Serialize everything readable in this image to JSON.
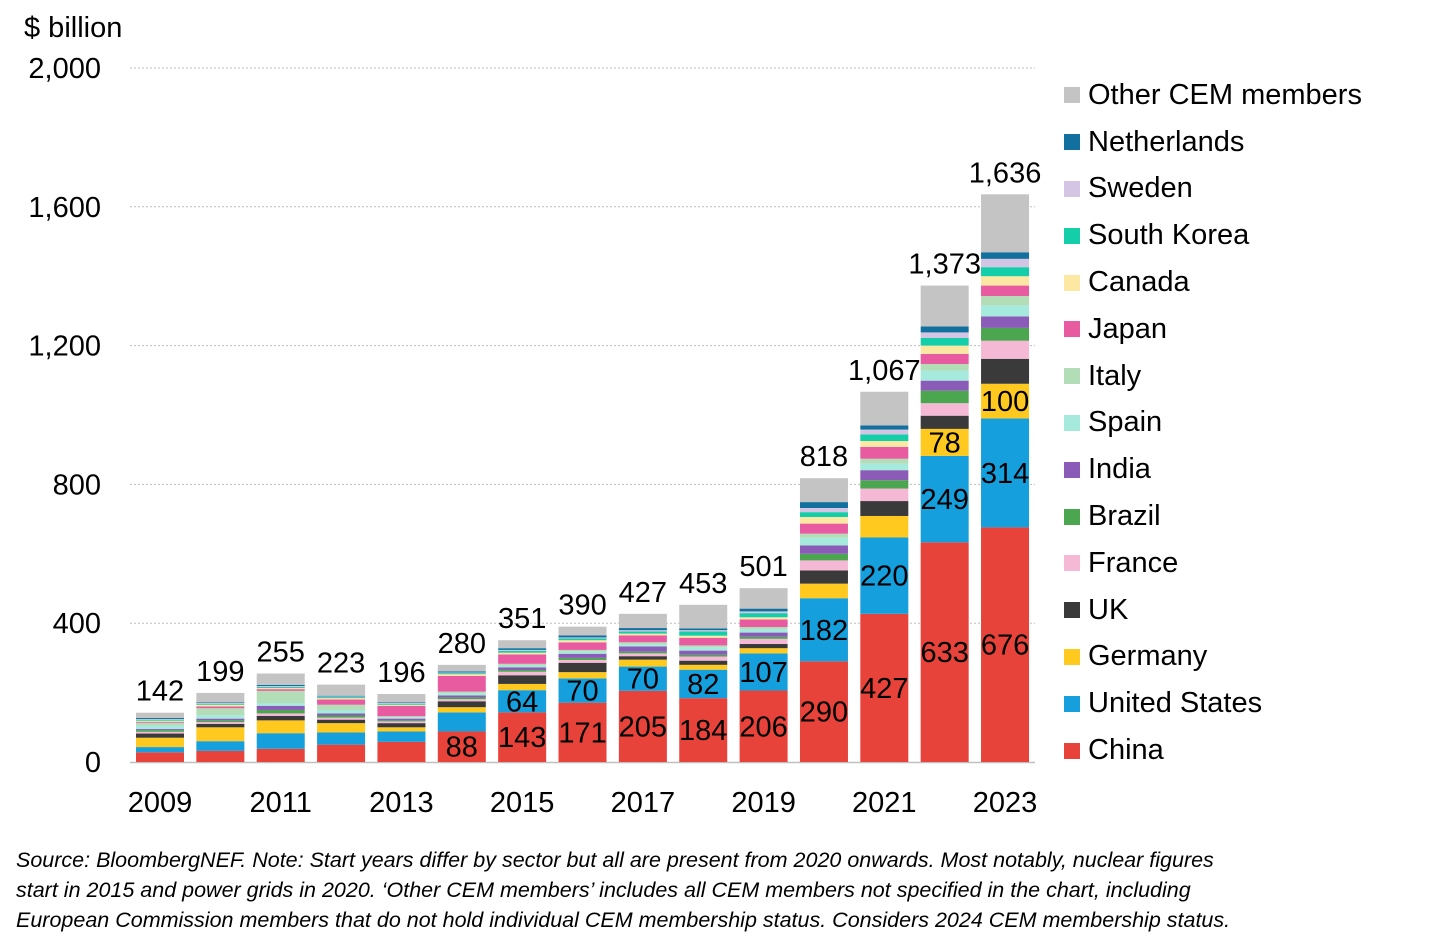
{
  "chart_data": {
    "type": "bar",
    "stacked": true,
    "unit_label": "$ billion",
    "ylim": [
      0,
      2000
    ],
    "yticks": [
      0,
      400,
      800,
      1200,
      1600,
      2000
    ],
    "ytick_labels": [
      "0",
      "400",
      "800",
      "1,200",
      "1,600",
      "2,000"
    ],
    "categories": [
      "2009",
      "2010",
      "2011",
      "2012",
      "2013",
      "2014",
      "2015",
      "2016",
      "2017",
      "2018",
      "2019",
      "2020",
      "2021",
      "2022",
      "2023"
    ],
    "xtick_labels": [
      "2009",
      "",
      "2011",
      "",
      "2013",
      "",
      "2015",
      "",
      "2017",
      "",
      "2019",
      "",
      "2021",
      "",
      "2023"
    ],
    "totals": [
      142,
      199,
      255,
      223,
      196,
      280,
      351,
      390,
      427,
      453,
      501,
      818,
      1067,
      1373,
      1636
    ],
    "total_labels": [
      "142",
      "199",
      "255",
      "223",
      "196",
      "280",
      "351",
      "390",
      "427",
      "453",
      "501",
      "818",
      "1,067",
      "1,373",
      "1,636"
    ],
    "grid": true,
    "legend_position": "right",
    "series": [
      {
        "name": "China",
        "color": "#E8433A",
        "values": [
          28,
          32,
          38,
          50,
          58,
          88,
          143,
          171,
          205,
          184,
          206,
          290,
          427,
          633,
          676
        ],
        "labels": [
          null,
          null,
          null,
          null,
          null,
          "88",
          "143",
          "171",
          "205",
          "184",
          "206",
          "290",
          "427",
          "633",
          "676"
        ]
      },
      {
        "name": "United States",
        "color": "#169FDD",
        "values": [
          15,
          28,
          45,
          35,
          30,
          55,
          64,
          70,
          70,
          82,
          107,
          182,
          220,
          249,
          314
        ],
        "labels": [
          null,
          null,
          null,
          null,
          null,
          null,
          "64",
          "70",
          "70",
          "82",
          "107",
          "182",
          "220",
          "249",
          "314"
        ]
      },
      {
        "name": "Germany",
        "color": "#FFC91F",
        "values": [
          27,
          40,
          37,
          27,
          12,
          15,
          18,
          18,
          20,
          14,
          15,
          42,
          62,
          78,
          100
        ],
        "labels": [
          null,
          null,
          null,
          null,
          null,
          null,
          null,
          null,
          null,
          null,
          null,
          null,
          null,
          "78",
          "100"
        ]
      },
      {
        "name": "UK",
        "color": "#3A3A3A",
        "values": [
          12,
          10,
          13,
          10,
          12,
          17,
          25,
          27,
          10,
          12,
          12,
          38,
          43,
          38,
          72
        ]
      },
      {
        "name": "France",
        "color": "#F5B9D6",
        "values": [
          5,
          5,
          7,
          6,
          5,
          6,
          10,
          8,
          8,
          12,
          15,
          29,
          36,
          36,
          52
        ]
      },
      {
        "name": "Brazil",
        "color": "#4CA64F",
        "values": [
          5,
          5,
          10,
          6,
          3,
          5,
          5,
          6,
          5,
          5,
          6,
          19,
          24,
          36,
          37
        ]
      },
      {
        "name": "India",
        "color": "#8A5CB8",
        "values": [
          3,
          5,
          12,
          6,
          5,
          6,
          8,
          12,
          15,
          12,
          12,
          24,
          29,
          29,
          33
        ]
      },
      {
        "name": "Spain",
        "color": "#A6E9DD",
        "values": [
          10,
          10,
          8,
          10,
          4,
          6,
          5,
          6,
          6,
          10,
          10,
          22,
          19,
          29,
          32
        ]
      },
      {
        "name": "Italy",
        "color": "#B3DDB6",
        "values": [
          8,
          20,
          35,
          15,
          3,
          5,
          5,
          5,
          6,
          5,
          6,
          12,
          14,
          19,
          27
        ]
      },
      {
        "name": "Japan",
        "color": "#E85BA1",
        "values": [
          3,
          5,
          5,
          15,
          30,
          45,
          27,
          22,
          20,
          22,
          22,
          29,
          34,
          29,
          30
        ]
      },
      {
        "name": "Canada",
        "color": "#FCE8A2",
        "values": [
          3,
          5,
          3,
          4,
          3,
          5,
          5,
          6,
          5,
          6,
          6,
          19,
          17,
          24,
          27
        ]
      },
      {
        "name": "South Korea",
        "color": "#14CDA9",
        "values": [
          3,
          3,
          3,
          3,
          3,
          3,
          5,
          5,
          6,
          12,
          12,
          14,
          19,
          22,
          26
        ]
      },
      {
        "name": "Sweden",
        "color": "#D5C5E5",
        "values": [
          2,
          2,
          3,
          2,
          2,
          2,
          3,
          3,
          4,
          4,
          5,
          12,
          14,
          16,
          24
        ]
      },
      {
        "name": "Netherlands",
        "color": "#11709E",
        "values": [
          3,
          2,
          3,
          2,
          2,
          3,
          5,
          6,
          6,
          5,
          8,
          17,
          12,
          17,
          19
        ]
      },
      {
        "name": "Other CEM members",
        "color": "#C4C4C4",
        "values": [
          15,
          27,
          33,
          32,
          24,
          19,
          23,
          25,
          41,
          68,
          59,
          69,
          97,
          118,
          167
        ]
      }
    ]
  },
  "note_lines": [
    "Source: BloombergNEF. Note: Start years differ by sector but all are present from 2020 onwards. Most notably, nuclear figures",
    "start in 2015 and power grids in 2020.  ‘Other CEM members’ includes all CEM members not specified in the chart, including",
    "European Commission members that do not hold individual CEM membership status. Considers 2024 CEM membership status."
  ]
}
